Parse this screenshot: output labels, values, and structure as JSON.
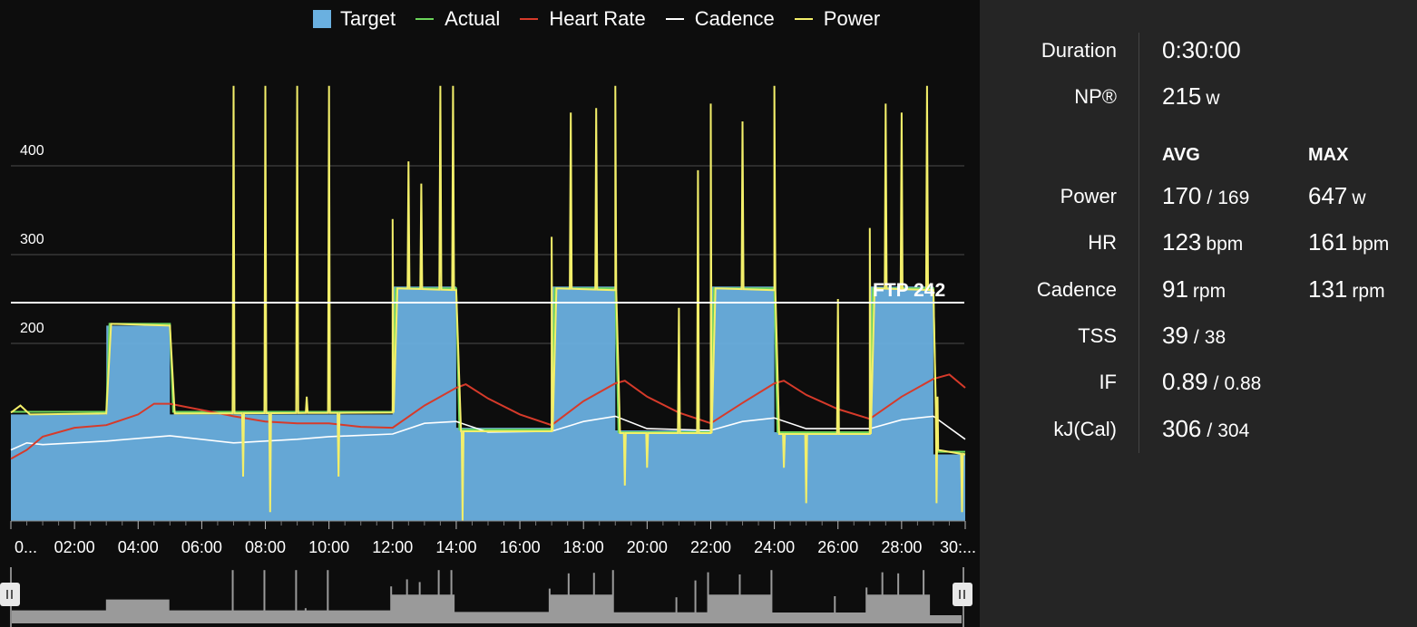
{
  "legend": {
    "target": {
      "label": "Target",
      "color": "#6ab0e0"
    },
    "actual": {
      "label": "Actual",
      "color": "#6bd45a"
    },
    "heart_rate": {
      "label": "Heart Rate",
      "color": "#d63a2a"
    },
    "cadence": {
      "label": "Cadence",
      "color": "#ffffff"
    },
    "power": {
      "label": "Power",
      "color": "#f3ef6a"
    }
  },
  "ftp_label": "FTP 242",
  "stats": {
    "duration": {
      "label": "Duration",
      "value": "0:30:00"
    },
    "np": {
      "label": "NP®",
      "value": "215",
      "unit": "w"
    },
    "headers": {
      "avg": "AVG",
      "max": "MAX"
    },
    "rows": [
      {
        "key": "power",
        "label": "Power",
        "avg": "170",
        "avg2": "169",
        "avg_unit": "",
        "max": "647",
        "max_unit": "w"
      },
      {
        "key": "hr",
        "label": "HR",
        "avg": "123",
        "avg2": "",
        "avg_unit": "bpm",
        "max": "161",
        "max_unit": "bpm"
      },
      {
        "key": "cadence",
        "label": "Cadence",
        "avg": "91",
        "avg2": "",
        "avg_unit": "rpm",
        "max": "131",
        "max_unit": "rpm"
      },
      {
        "key": "tss",
        "label": "TSS",
        "avg": "39",
        "avg2": "38",
        "avg_unit": "",
        "max": "",
        "max_unit": ""
      },
      {
        "key": "if",
        "label": "IF",
        "avg": "0.89",
        "avg2": "0.88",
        "avg_unit": "",
        "max": "",
        "max_unit": ""
      },
      {
        "key": "kj",
        "label": "kJ(Cal)",
        "avg": "306",
        "avg2": "304",
        "avg_unit": "",
        "max": "",
        "max_unit": ""
      }
    ]
  },
  "chart_data": {
    "type": "area",
    "xlabel": "",
    "ylabel": "",
    "x_unit": "minutes",
    "x_ticks": [
      "0...",
      "02:00",
      "04:00",
      "06:00",
      "08:00",
      "10:00",
      "12:00",
      "14:00",
      "16:00",
      "18:00",
      "20:00",
      "22:00",
      "24:00",
      "26:00",
      "28:00",
      "30:..."
    ],
    "y_ticks": [
      200,
      300,
      400
    ],
    "ylim": [
      0,
      490
    ],
    "xlim": [
      0,
      30
    ],
    "grid": true,
    "legend_position": "top",
    "ftp": 242,
    "series": [
      {
        "name": "Target",
        "type": "step-area",
        "points": [
          [
            0,
            120
          ],
          [
            3,
            120
          ],
          [
            3,
            220
          ],
          [
            5,
            220
          ],
          [
            5,
            120
          ],
          [
            12,
            120
          ],
          [
            12,
            264
          ],
          [
            14,
            264
          ],
          [
            14,
            105
          ],
          [
            17,
            105
          ],
          [
            17,
            264
          ],
          [
            19,
            264
          ],
          [
            19,
            102
          ],
          [
            22,
            102
          ],
          [
            22,
            264
          ],
          [
            24,
            264
          ],
          [
            24,
            100
          ],
          [
            27,
            100
          ],
          [
            27,
            264
          ],
          [
            29,
            264
          ],
          [
            29,
            75
          ],
          [
            30,
            75
          ]
        ]
      },
      {
        "name": "Actual",
        "points": [
          [
            0,
            123
          ],
          [
            3,
            123
          ],
          [
            3.1,
            222
          ],
          [
            5,
            222
          ],
          [
            5.1,
            123
          ],
          [
            12,
            123
          ],
          [
            12.1,
            262
          ],
          [
            14,
            262
          ],
          [
            14.1,
            103
          ],
          [
            17,
            103
          ],
          [
            17.1,
            262
          ],
          [
            19,
            262
          ],
          [
            19.1,
            100
          ],
          [
            22,
            100
          ],
          [
            22.1,
            262
          ],
          [
            24,
            262
          ],
          [
            24.1,
            100
          ],
          [
            27,
            100
          ],
          [
            27.1,
            262
          ],
          [
            29,
            262
          ],
          [
            29.1,
            78
          ],
          [
            30,
            78
          ]
        ]
      },
      {
        "name": "Power",
        "base": [
          [
            0,
            122
          ],
          [
            0.3,
            130
          ],
          [
            0.6,
            120
          ],
          [
            3,
            121
          ],
          [
            3.15,
            222
          ],
          [
            5,
            220
          ],
          [
            5.15,
            121
          ],
          [
            12,
            122
          ],
          [
            12.15,
            262
          ],
          [
            14,
            260
          ],
          [
            14.15,
            101
          ],
          [
            17,
            101
          ],
          [
            17.15,
            262
          ],
          [
            19,
            260
          ],
          [
            19.15,
            99
          ],
          [
            22,
            99
          ],
          [
            22.15,
            262
          ],
          [
            24,
            260
          ],
          [
            24.15,
            98
          ],
          [
            27,
            98
          ],
          [
            27.15,
            262
          ],
          [
            29,
            260
          ],
          [
            29.15,
            80
          ],
          [
            30,
            75
          ]
        ],
        "spikes": [
          [
            7,
            490
          ],
          [
            7.3,
            50
          ],
          [
            8,
            490
          ],
          [
            8.15,
            10
          ],
          [
            9,
            490
          ],
          [
            9.3,
            140
          ],
          [
            10,
            490
          ],
          [
            10.3,
            50
          ],
          [
            12,
            340
          ],
          [
            12.5,
            405
          ],
          [
            12.9,
            380
          ],
          [
            13.5,
            490
          ],
          [
            13.9,
            490
          ],
          [
            14.2,
            0
          ],
          [
            17,
            320
          ],
          [
            17.6,
            460
          ],
          [
            18.4,
            465
          ],
          [
            19,
            490
          ],
          [
            19.3,
            40
          ],
          [
            20,
            60
          ],
          [
            21,
            240
          ],
          [
            21.6,
            395
          ],
          [
            22,
            470
          ],
          [
            23,
            450
          ],
          [
            24,
            490
          ],
          [
            24.3,
            60
          ],
          [
            25,
            20
          ],
          [
            26,
            250
          ],
          [
            27,
            330
          ],
          [
            27.5,
            470
          ],
          [
            28,
            460
          ],
          [
            28.8,
            490
          ],
          [
            29.1,
            20
          ],
          [
            29.9,
            10
          ]
        ]
      },
      {
        "name": "Heart Rate",
        "points": [
          [
            0,
            70
          ],
          [
            0.5,
            80
          ],
          [
            1,
            95
          ],
          [
            2,
            105
          ],
          [
            3,
            108
          ],
          [
            4,
            120
          ],
          [
            4.5,
            132
          ],
          [
            5,
            132
          ],
          [
            6,
            125
          ],
          [
            7,
            118
          ],
          [
            8,
            112
          ],
          [
            9,
            110
          ],
          [
            10,
            110
          ],
          [
            11,
            106
          ],
          [
            12,
            105
          ],
          [
            13,
            130
          ],
          [
            14,
            150
          ],
          [
            14.3,
            154
          ],
          [
            15,
            138
          ],
          [
            16,
            120
          ],
          [
            17,
            108
          ],
          [
            18,
            135
          ],
          [
            19,
            155
          ],
          [
            19.3,
            158
          ],
          [
            20,
            140
          ],
          [
            21,
            122
          ],
          [
            22,
            110
          ],
          [
            23,
            133
          ],
          [
            24,
            155
          ],
          [
            24.3,
            158
          ],
          [
            25,
            142
          ],
          [
            26,
            126
          ],
          [
            27,
            115
          ],
          [
            28,
            140
          ],
          [
            29,
            160
          ],
          [
            29.5,
            165
          ],
          [
            30,
            150
          ]
        ]
      },
      {
        "name": "Cadence",
        "points": [
          [
            0,
            80
          ],
          [
            0.5,
            88
          ],
          [
            1,
            86
          ],
          [
            2,
            88
          ],
          [
            3,
            90
          ],
          [
            5,
            96
          ],
          [
            7,
            88
          ],
          [
            9,
            92
          ],
          [
            10,
            95
          ],
          [
            12,
            98
          ],
          [
            13,
            110
          ],
          [
            14,
            112
          ],
          [
            15,
            100
          ],
          [
            17,
            101
          ],
          [
            18,
            112
          ],
          [
            19,
            118
          ],
          [
            20,
            104
          ],
          [
            22,
            102
          ],
          [
            23,
            112
          ],
          [
            24,
            116
          ],
          [
            25,
            104
          ],
          [
            27,
            104
          ],
          [
            28,
            114
          ],
          [
            29,
            118
          ],
          [
            30,
            92
          ]
        ]
      }
    ]
  }
}
